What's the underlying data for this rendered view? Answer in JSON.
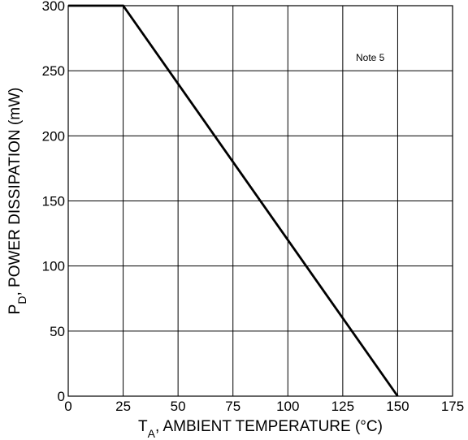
{
  "chart_data": {
    "type": "line",
    "title": "",
    "xlabel": {
      "main": "T",
      "sub": "A",
      "rest": ", AMBIENT TEMPERATURE (°C)"
    },
    "ylabel": {
      "main": "P",
      "sub": "D",
      "rest": ", POWER DISSIPATION (mW)"
    },
    "xlim": [
      0,
      175
    ],
    "ylim": [
      0,
      300
    ],
    "xticks": [
      "0",
      "25",
      "50",
      "75",
      "100",
      "125",
      "150",
      "175"
    ],
    "yticks": [
      "0",
      "50",
      "100",
      "150",
      "200",
      "250",
      "300"
    ],
    "grid": true,
    "annotation": "Note 5",
    "series": [
      {
        "x": [
          0,
          25,
          150
        ],
        "y": [
          300,
          300,
          0
        ]
      }
    ]
  }
}
